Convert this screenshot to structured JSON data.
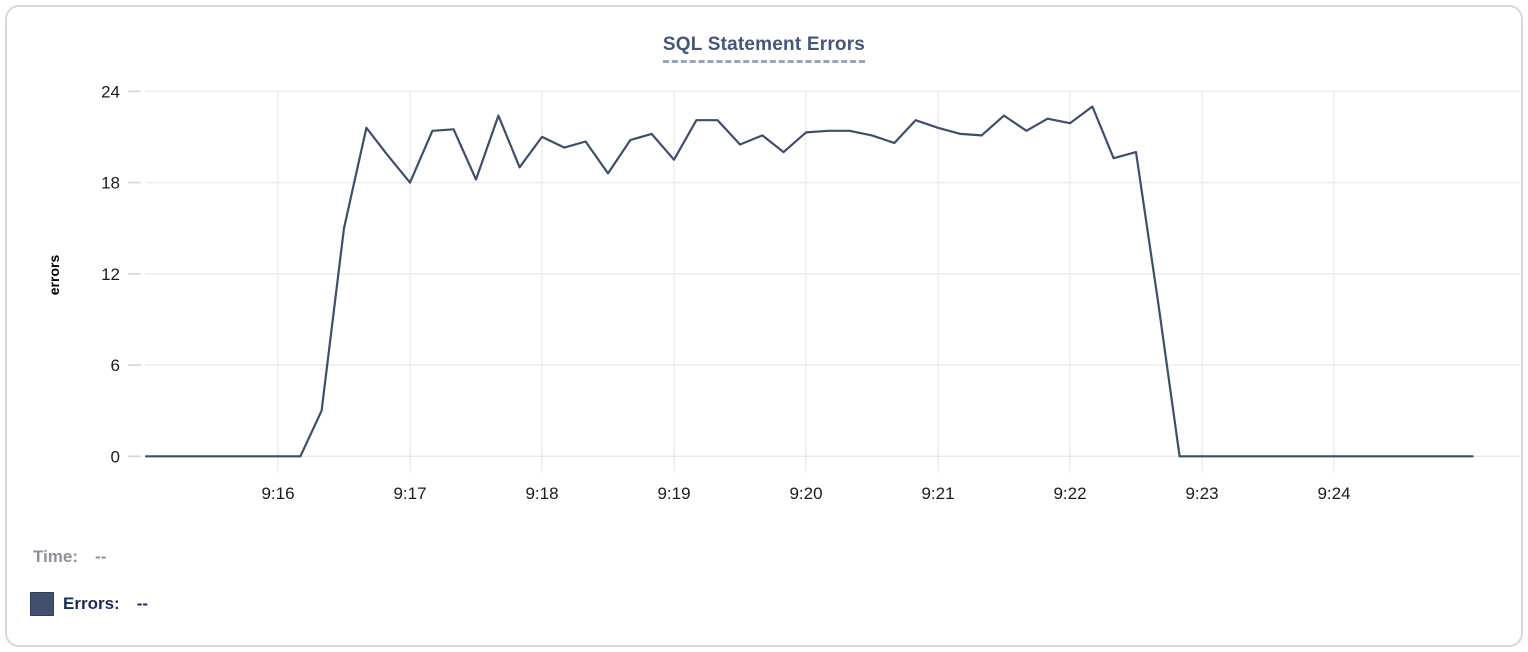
{
  "title": "SQL Statement Errors",
  "colors": {
    "line": "#3f4e6d",
    "title": "#44567c",
    "title_underline": "#99a4ba",
    "grid": "#eaeaea",
    "tick": "#d6d6d6",
    "axis_text": "#1c1c1c",
    "card_border": "#d8d8d8",
    "legend_time_text": "#8b909b",
    "legend_errors_text": "#1b2a5c",
    "swatch": "#42506e"
  },
  "legend": {
    "time_label": "Time:",
    "time_value": "--",
    "errors_label": "Errors:",
    "errors_value": "--"
  },
  "chart_data": {
    "type": "line",
    "title": "SQL Statement Errors",
    "xlabel": "",
    "ylabel": "errors",
    "ylim": [
      0,
      24
    ],
    "y_ticks": [
      0,
      6,
      12,
      18,
      24
    ],
    "x_ticks": [
      {
        "t": 16,
        "label": "9:16"
      },
      {
        "t": 17,
        "label": "9:17"
      },
      {
        "t": 18,
        "label": "9:18"
      },
      {
        "t": 19,
        "label": "9:19"
      },
      {
        "t": 20,
        "label": "9:20"
      },
      {
        "t": 21,
        "label": "9:21"
      },
      {
        "t": 22,
        "label": "9:22"
      },
      {
        "t": 23,
        "label": "9:23"
      },
      {
        "t": 24,
        "label": "9:24"
      }
    ],
    "x_domain_minutes_after_9": [
      15.0,
      25.05
    ],
    "grid": true,
    "legend_position": "bottom-left",
    "series": [
      {
        "name": "Errors",
        "points_t_minutes_after_9_vs_errors": [
          [
            15.0,
            0
          ],
          [
            15.17,
            0
          ],
          [
            15.33,
            0
          ],
          [
            15.5,
            0
          ],
          [
            15.67,
            0
          ],
          [
            15.83,
            0
          ],
          [
            16.0,
            0
          ],
          [
            16.17,
            0
          ],
          [
            16.33,
            3
          ],
          [
            16.5,
            15
          ],
          [
            16.67,
            21.6
          ],
          [
            16.83,
            19.8
          ],
          [
            17.0,
            18
          ],
          [
            17.17,
            21.4
          ],
          [
            17.33,
            21.5
          ],
          [
            17.5,
            18.2
          ],
          [
            17.67,
            22.4
          ],
          [
            17.83,
            19
          ],
          [
            18.0,
            21
          ],
          [
            18.17,
            20.3
          ],
          [
            18.33,
            20.7
          ],
          [
            18.5,
            18.6
          ],
          [
            18.67,
            20.8
          ],
          [
            18.83,
            21.2
          ],
          [
            19.0,
            19.5
          ],
          [
            19.17,
            22.1
          ],
          [
            19.33,
            22.1
          ],
          [
            19.5,
            20.5
          ],
          [
            19.67,
            21.1
          ],
          [
            19.83,
            20
          ],
          [
            20.0,
            21.3
          ],
          [
            20.17,
            21.4
          ],
          [
            20.33,
            21.4
          ],
          [
            20.5,
            21.1
          ],
          [
            20.67,
            20.6
          ],
          [
            20.83,
            22.1
          ],
          [
            21.0,
            21.6
          ],
          [
            21.17,
            21.2
          ],
          [
            21.33,
            21.1
          ],
          [
            21.5,
            22.4
          ],
          [
            21.67,
            21.4
          ],
          [
            21.83,
            22.2
          ],
          [
            22.0,
            21.9
          ],
          [
            22.17,
            23
          ],
          [
            22.33,
            19.6
          ],
          [
            22.5,
            20
          ],
          [
            22.67,
            10
          ],
          [
            22.83,
            0
          ],
          [
            23.0,
            0
          ],
          [
            23.17,
            0
          ],
          [
            23.33,
            0
          ],
          [
            23.5,
            0
          ],
          [
            23.67,
            0
          ],
          [
            23.83,
            0
          ],
          [
            24.0,
            0
          ],
          [
            24.17,
            0
          ],
          [
            24.33,
            0
          ],
          [
            24.5,
            0
          ],
          [
            24.67,
            0
          ],
          [
            24.83,
            0
          ],
          [
            25.05,
            0
          ]
        ]
      }
    ]
  }
}
